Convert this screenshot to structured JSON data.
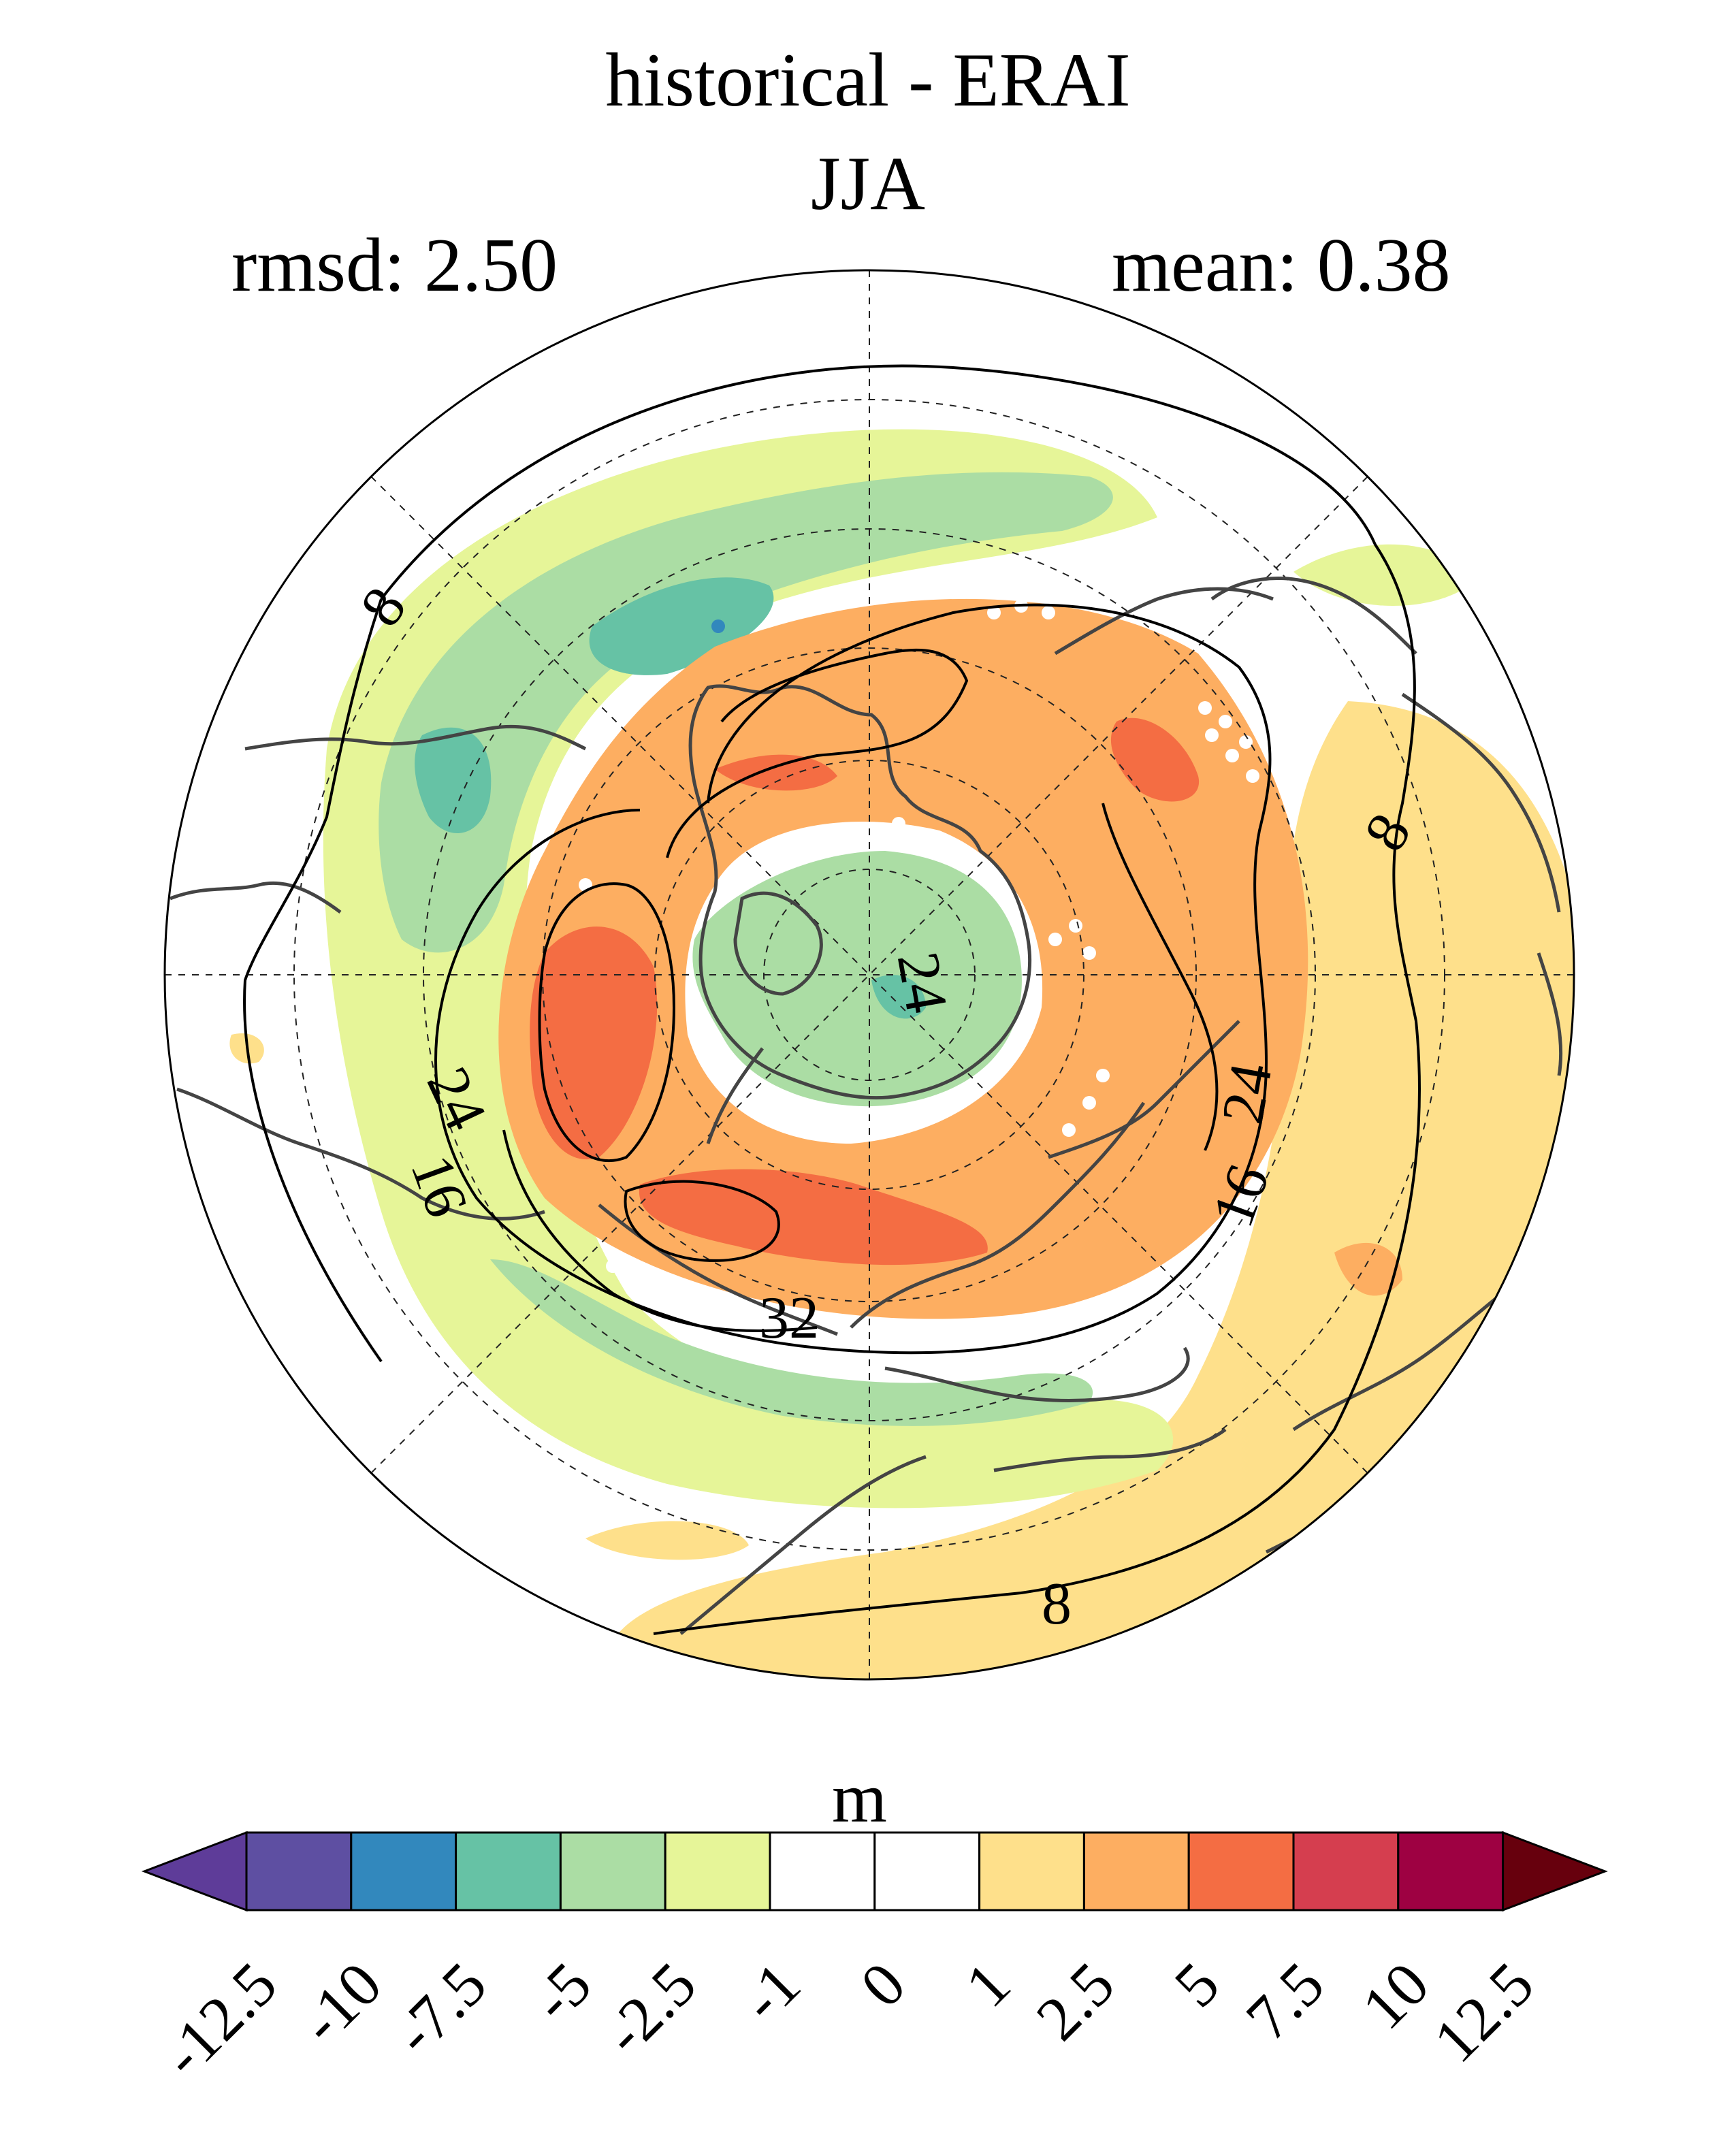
{
  "title": "historical - ERAI",
  "season": "JJA",
  "stats": {
    "rmsd_text": "rmsd: 2.50",
    "mean_text": "mean: 0.38"
  },
  "projection": "north polar stereographic",
  "contour_labels": [
    "8",
    "8",
    "8",
    "16",
    "16",
    "24",
    "24",
    "24",
    "32"
  ],
  "colorbar": {
    "units": "m",
    "levels": [
      "-12.5",
      "-10",
      "-7.5",
      "-5",
      "-2.5",
      "-1",
      "0",
      "1",
      "2.5",
      "5",
      "7.5",
      "10",
      "12.5"
    ],
    "colors": [
      "#5e3c99",
      "#5e4fa2",
      "#3288bd",
      "#66c2a5",
      "#abdda4",
      "#e6f598",
      "#ffffff",
      "#ffffff",
      "#fee08b",
      "#fdae61",
      "#f46d43",
      "#d53e4f",
      "#9e0142",
      "#67000d"
    ]
  },
  "chart_data": {
    "type": "heatmap",
    "title": "historical - ERAI",
    "subtitle": "JJA",
    "rmsd": 2.5,
    "mean": 0.38,
    "units": "m",
    "shading_levels": [
      -12.5,
      -10,
      -7.5,
      -5,
      -2.5,
      -1,
      0,
      1,
      2.5,
      5,
      7.5,
      10,
      12.5
    ],
    "contour_levels": [
      8,
      16,
      24,
      32
    ]
  }
}
